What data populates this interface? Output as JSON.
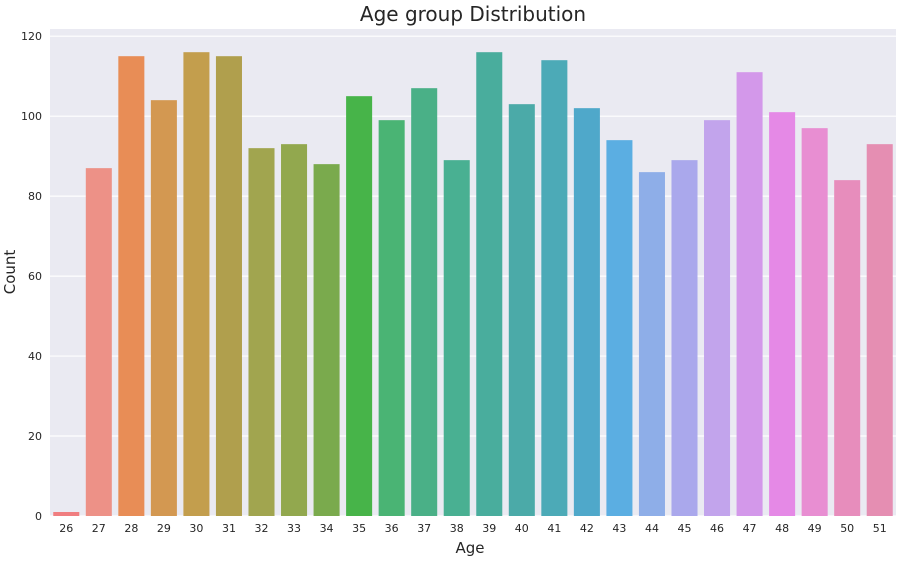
{
  "chart_data": {
    "type": "bar",
    "title": "Age group Distribution",
    "xlabel": "Age",
    "ylabel": "Count",
    "categories": [
      "26",
      "27",
      "28",
      "29",
      "30",
      "31",
      "32",
      "33",
      "34",
      "35",
      "36",
      "37",
      "38",
      "39",
      "40",
      "41",
      "42",
      "43",
      "44",
      "45",
      "46",
      "47",
      "48",
      "49",
      "50",
      "51"
    ],
    "values": [
      1,
      87,
      115,
      104,
      116,
      115,
      92,
      93,
      88,
      105,
      99,
      107,
      89,
      116,
      103,
      114,
      102,
      94,
      86,
      89,
      99,
      111,
      101,
      97,
      84,
      93
    ],
    "colors": [
      "#f07e80",
      "#ed9187",
      "#e88d56",
      "#d39851",
      "#c39e4d",
      "#b09f4d",
      "#a1a54f",
      "#92a84e",
      "#7aaa4d",
      "#47b449",
      "#4ab474",
      "#4ab087",
      "#49b092",
      "#49ad9d",
      "#4baaa8",
      "#4caab7",
      "#4fa8ca",
      "#5baee2",
      "#8eaee8",
      "#aaa8ec",
      "#c2a4ec",
      "#d398ea",
      "#e589e6",
      "#e88ed2",
      "#e78dbc",
      "#e58eb2"
    ],
    "yticks": [
      0,
      20,
      40,
      60,
      80,
      100,
      120
    ],
    "ylim": [
      0,
      121.8
    ],
    "grid": true,
    "background": "#eaeaf2",
    "grid_color": "#ffffff"
  }
}
